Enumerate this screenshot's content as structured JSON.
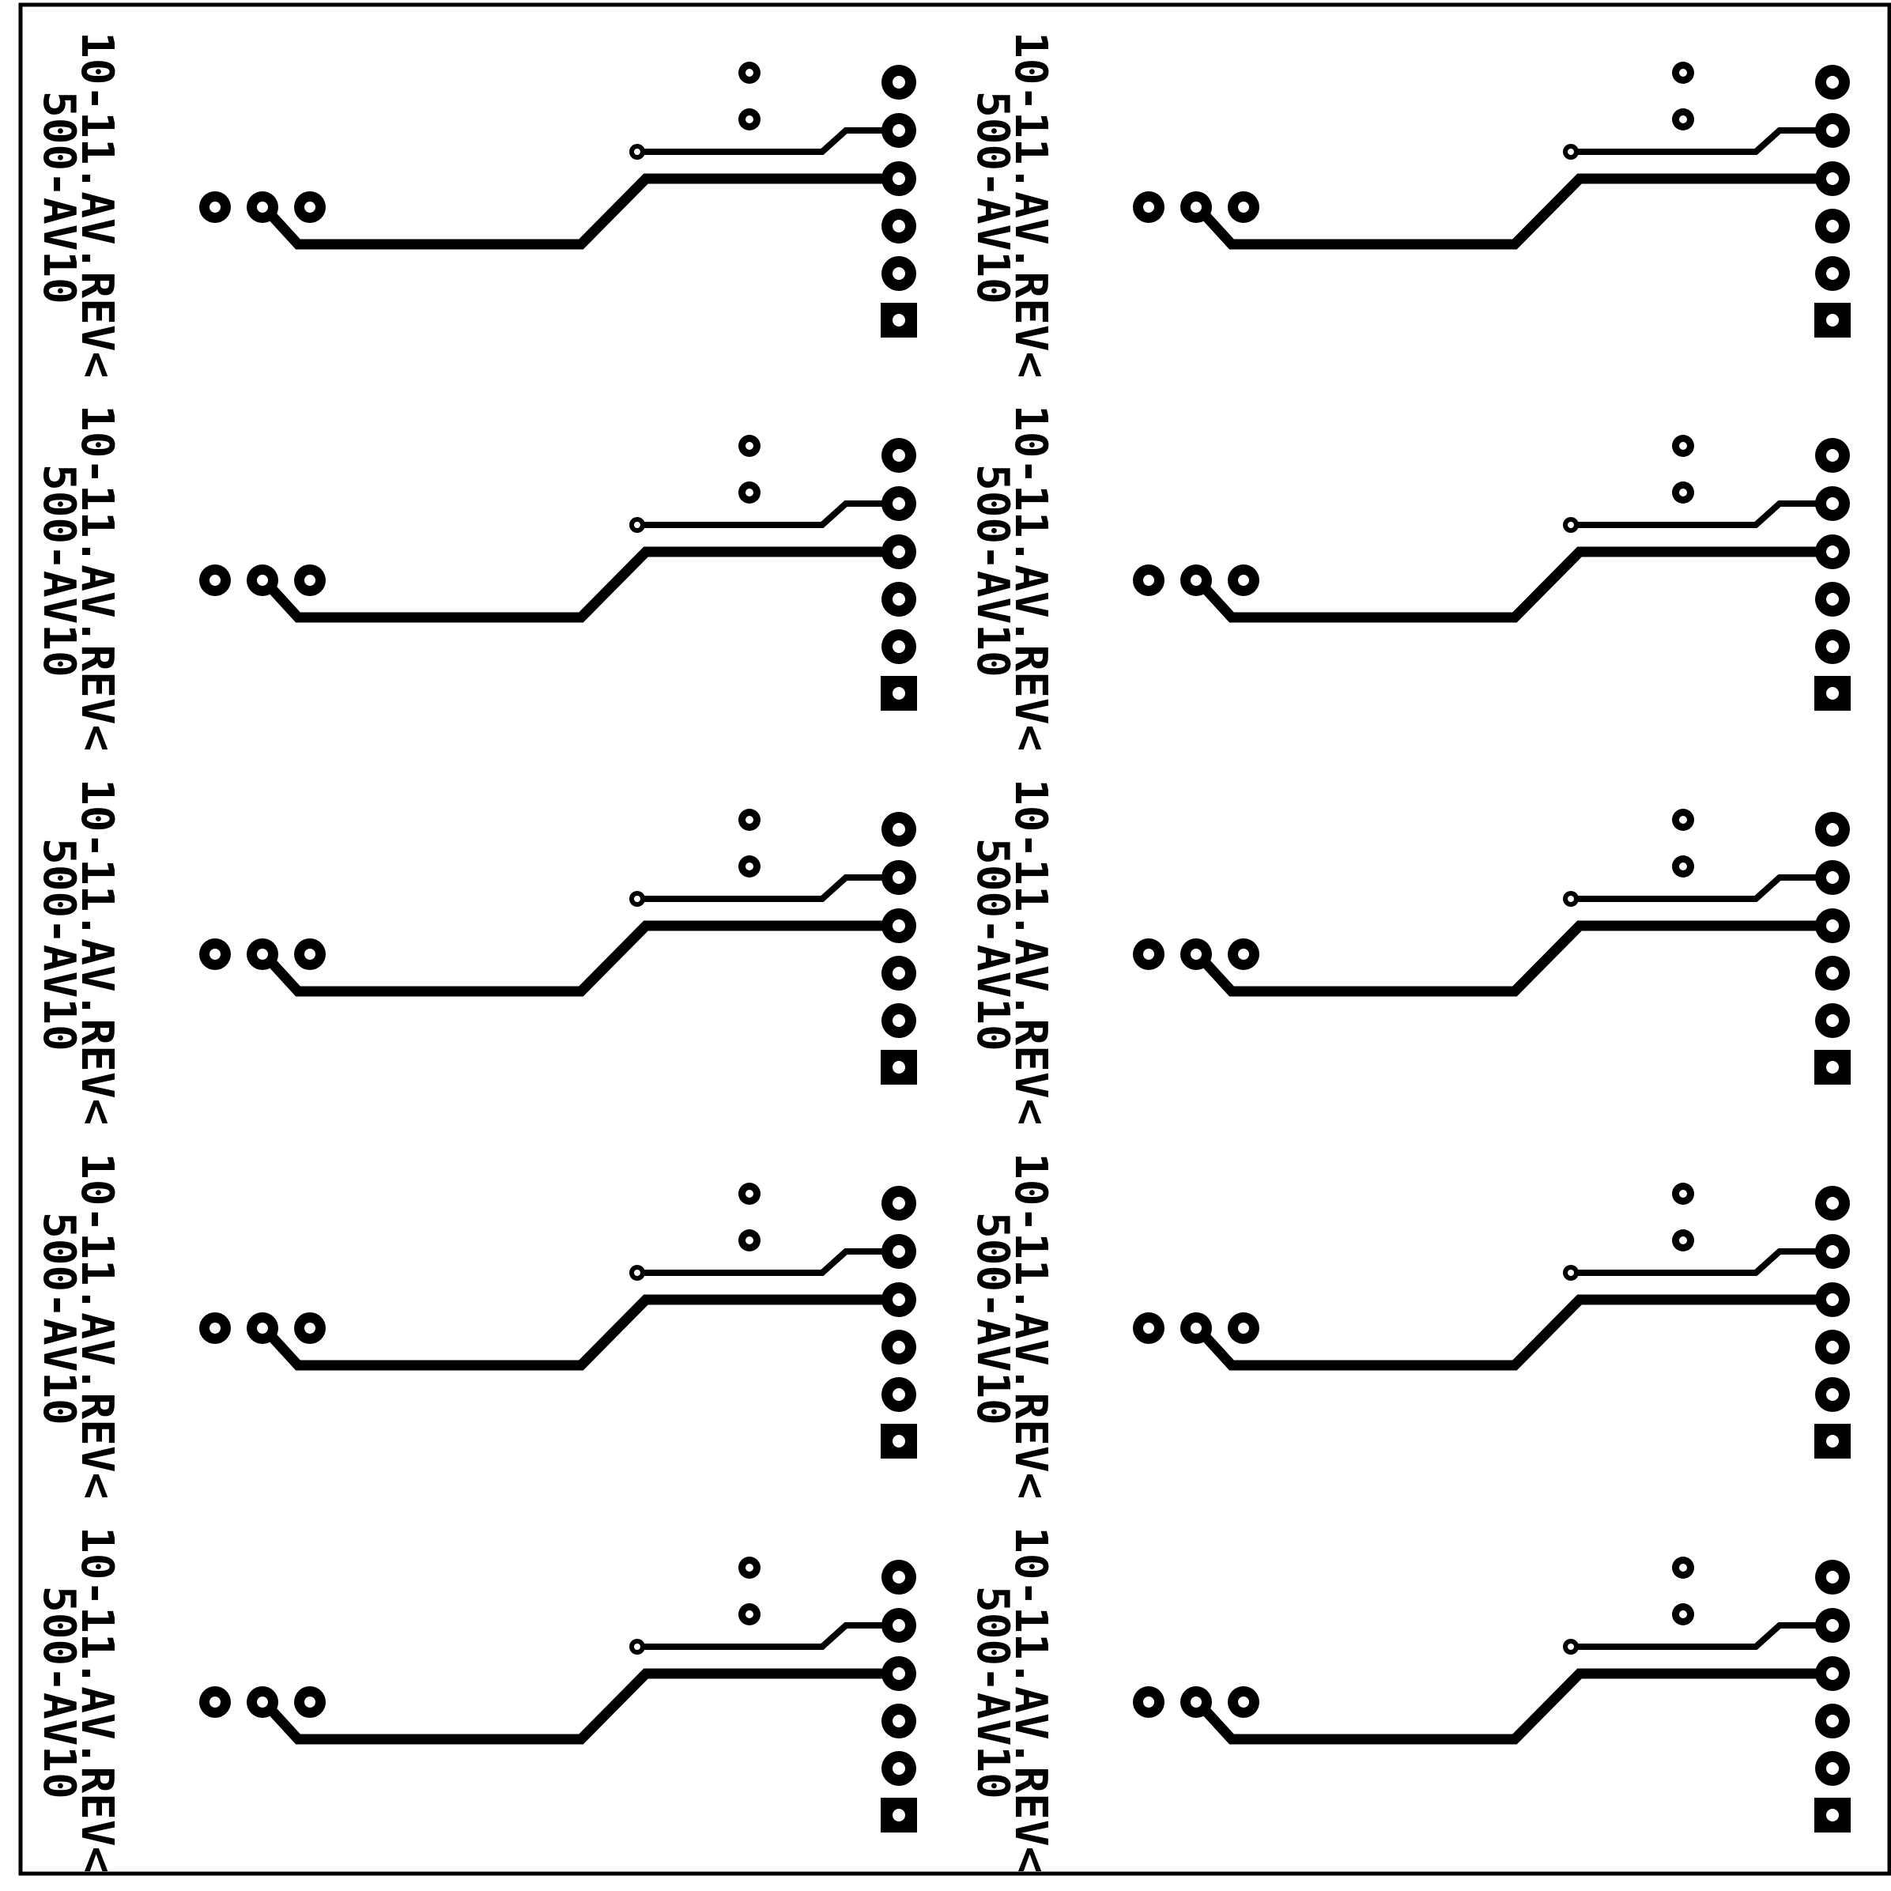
{
  "figure": {
    "description_free": true,
    "colors": {
      "background": "#ffffff",
      "copper": "#000000",
      "pad_mark": "#ffffff"
    },
    "layout": {
      "columns": 2,
      "rows": 5
    }
  },
  "board": {
    "label_lines": [
      "10-11.AV.REV<",
      "500-AV10"
    ],
    "header_pins": [
      {
        "pin": "6",
        "shape": "round"
      },
      {
        "pin": "5",
        "shape": "round"
      },
      {
        "pin": "4",
        "shape": "round"
      },
      {
        "pin": "3",
        "shape": "round"
      },
      {
        "pin": "2",
        "shape": "round"
      },
      {
        "pin": "1",
        "shape": "square"
      }
    ],
    "component_pads": 3,
    "vias": 2
  }
}
